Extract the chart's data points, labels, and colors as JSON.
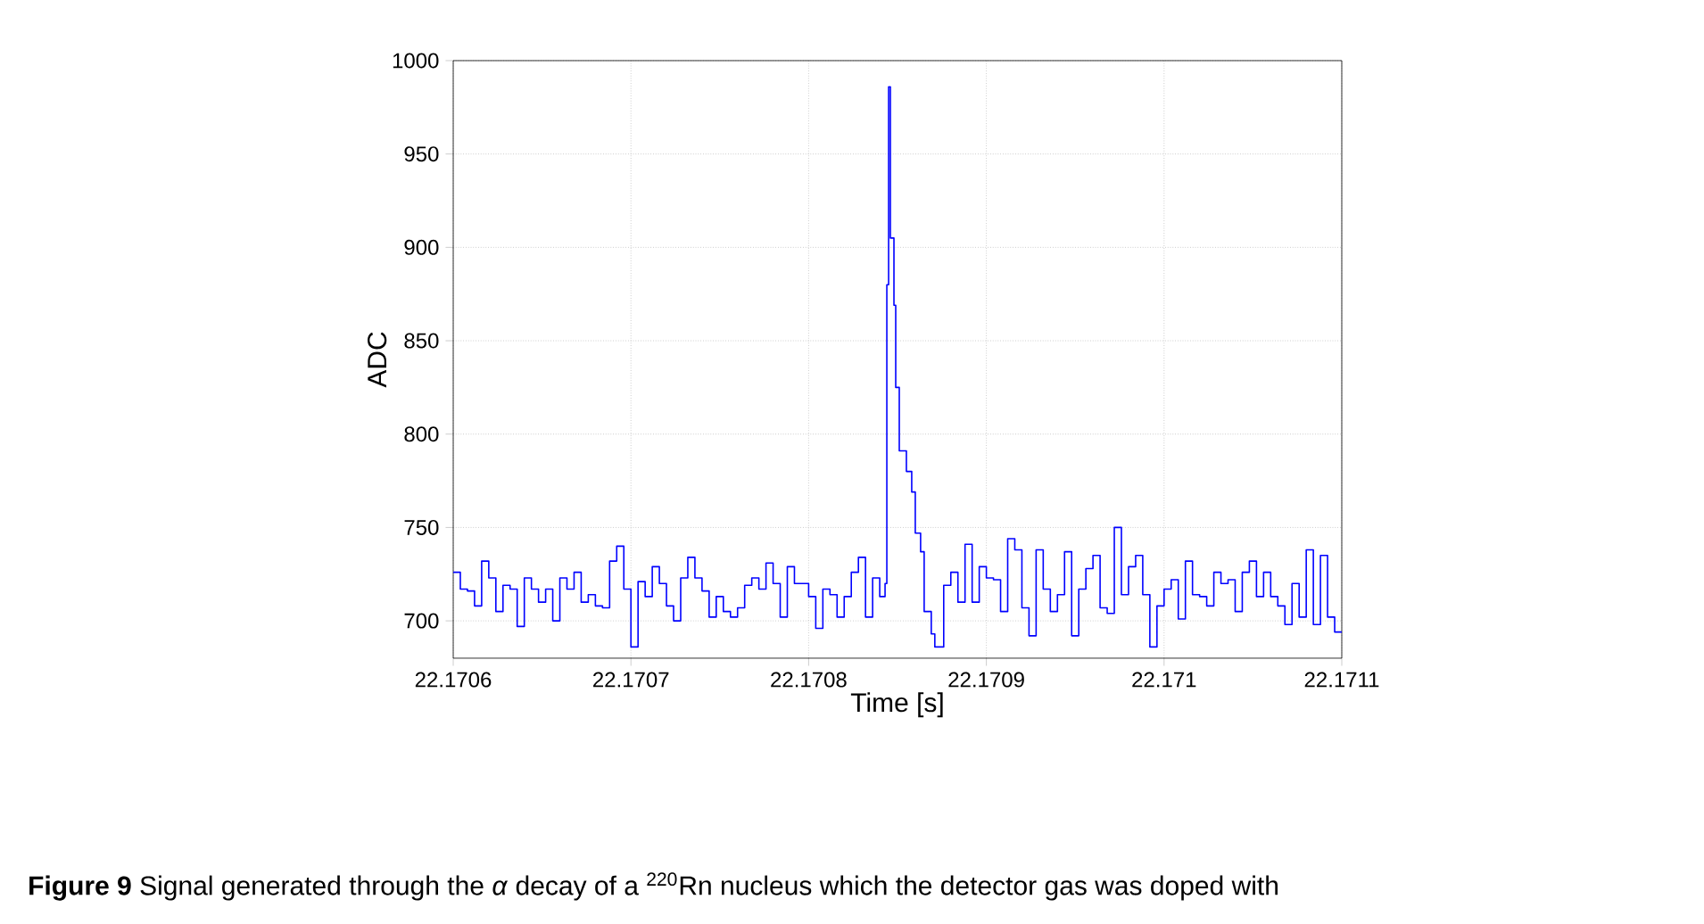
{
  "chart_data": {
    "type": "step",
    "xlabel": "Time [s]",
    "ylabel": "ADC",
    "annotations": [
      "**Figure 9**  Signal generated through the *α* decay of a $^{220}$Rn nucleus which the detector gas was doped with"
    ],
    "xlim": [
      22.1706,
      22.1711
    ],
    "ylim": [
      680,
      1000
    ],
    "xticks": [
      22.1706,
      22.1707,
      22.1708,
      22.1709,
      22.171,
      22.1711
    ],
    "yticks": [
      700,
      750,
      800,
      850,
      900,
      950,
      1000
    ],
    "grid": true,
    "series": [
      {
        "color": "#0000ff",
        "x": [
          22.1706,
          22.170604,
          22.170608,
          22.170612,
          22.170616,
          22.17062,
          22.170624,
          22.170628,
          22.170632,
          22.170636,
          22.17064,
          22.170644,
          22.170648,
          22.170652,
          22.170656,
          22.17066,
          22.170664,
          22.170668,
          22.170672,
          22.170676,
          22.17068,
          22.170684,
          22.170688,
          22.170692,
          22.170696,
          22.1707,
          22.170704,
          22.170708,
          22.170712,
          22.170716,
          22.17072,
          22.170724,
          22.170728,
          22.170732,
          22.170736,
          22.17074,
          22.170744,
          22.170748,
          22.170752,
          22.170756,
          22.17076,
          22.170764,
          22.170768,
          22.170772,
          22.170776,
          22.17078,
          22.170784,
          22.170788,
          22.170792,
          22.170796,
          22.1708,
          22.170804,
          22.170808,
          22.170812,
          22.170816,
          22.17082,
          22.170824,
          22.170828,
          22.170832,
          22.170836,
          22.17084,
          22.170843,
          22.170844,
          22.170845,
          22.170846,
          22.170848,
          22.170849,
          22.170851,
          22.170855,
          22.170858,
          22.17086,
          22.170863,
          22.170865,
          22.170869,
          22.170871,
          22.170876,
          22.17088,
          22.170884,
          22.170888,
          22.170892,
          22.170896,
          22.1709,
          22.170904,
          22.170908,
          22.170912,
          22.170916,
          22.17092,
          22.170924,
          22.170928,
          22.170932,
          22.170936,
          22.17094,
          22.170944,
          22.170948,
          22.170952,
          22.170956,
          22.17096,
          22.170964,
          22.170968,
          22.170972,
          22.170976,
          22.17098,
          22.170984,
          22.170988,
          22.170992,
          22.170996,
          22.171,
          22.171004,
          22.171008,
          22.171012,
          22.171016,
          22.17102,
          22.171024,
          22.171028,
          22.171032,
          22.171036,
          22.17104,
          22.171044,
          22.171048,
          22.171052,
          22.171056,
          22.17106,
          22.171064,
          22.171068,
          22.171072,
          22.171076,
          22.17108,
          22.171084,
          22.171088,
          22.171092,
          22.171096,
          22.1711
        ],
        "values": [
          726,
          717,
          716,
          708,
          732,
          723,
          705,
          719,
          717,
          697,
          723,
          717,
          710,
          717,
          700,
          723,
          717,
          726,
          710,
          714,
          708,
          707,
          732,
          740,
          717,
          686,
          721,
          713,
          729,
          720,
          708,
          700,
          723,
          734,
          723,
          716,
          702,
          713,
          705,
          702,
          707,
          719,
          723,
          717,
          731,
          720,
          702,
          729,
          720,
          720,
          713,
          696,
          717,
          714,
          702,
          713,
          726,
          734,
          702,
          723,
          713,
          720,
          880,
          986,
          905,
          869,
          825,
          791,
          780,
          769,
          747,
          737,
          705,
          693,
          686,
          719,
          726,
          710,
          741,
          710,
          729,
          723,
          722,
          705,
          744,
          738,
          707,
          692,
          738,
          717,
          705,
          714,
          737,
          692,
          717,
          728,
          735,
          707,
          704,
          750,
          714,
          729,
          735,
          714,
          686,
          708,
          717,
          722,
          701,
          732,
          714,
          713,
          708,
          726,
          720,
          722,
          705,
          726,
          732,
          713,
          726,
          713,
          708,
          698,
          720,
          702,
          738,
          698,
          735,
          702,
          694,
          694
        ]
      }
    ]
  }
}
